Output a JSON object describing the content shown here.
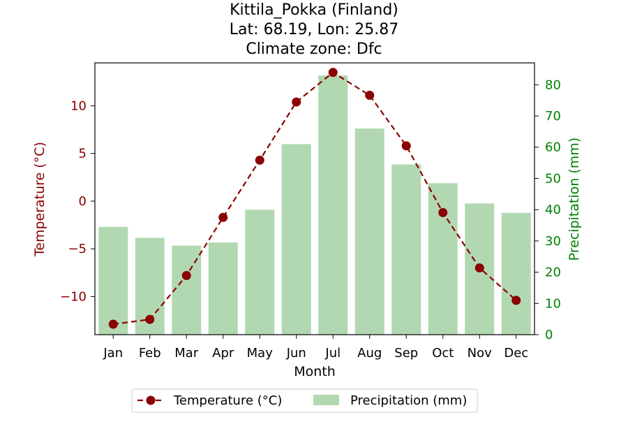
{
  "chart_data": {
    "type": "bar+line",
    "title_lines": [
      "Kittila_Pokka (Finland)",
      "Lat: 68.19, Lon: 25.87",
      "Climate zone: Dfc"
    ],
    "xlabel": "Month",
    "ylabel_left": "Temperature (°C)",
    "ylabel_right": "Precipitation (mm)",
    "categories": [
      "Jan",
      "Feb",
      "Mar",
      "Apr",
      "May",
      "Jun",
      "Jul",
      "Aug",
      "Sep",
      "Oct",
      "Nov",
      "Dec"
    ],
    "left_ticks": [
      -10,
      -5,
      0,
      5,
      10
    ],
    "left_tick_labels": [
      "−10",
      "−5",
      "0",
      "5",
      "10"
    ],
    "ylim_left": [
      -14.0,
      14.5
    ],
    "right_ticks": [
      0,
      10,
      20,
      30,
      40,
      50,
      60,
      70,
      80
    ],
    "right_tick_labels": [
      "0",
      "10",
      "20",
      "30",
      "40",
      "50",
      "60",
      "70",
      "80"
    ],
    "ylim_right": [
      0,
      87
    ],
    "series": [
      {
        "name": "Temperature (°C)",
        "type": "line",
        "axis": "left",
        "color": "#8b0000",
        "values": [
          -12.9,
          -12.4,
          -7.8,
          -1.7,
          4.3,
          10.4,
          13.5,
          11.1,
          5.8,
          -1.2,
          -7.0,
          -10.4
        ]
      },
      {
        "name": "Precipitation (mm)",
        "type": "bar",
        "axis": "right",
        "color": "#b2d8b2",
        "values": [
          34.5,
          31.0,
          28.5,
          29.5,
          40.0,
          61.0,
          83.0,
          66.0,
          54.5,
          48.5,
          42.0,
          39.0
        ]
      }
    ],
    "legend": {
      "position": "bottom-center",
      "entries": [
        "Temperature (°C)",
        "Precipitation (mm)"
      ]
    },
    "colors": {
      "left_axis": "#8b0000",
      "right_axis": "#008000",
      "text": "#000000"
    }
  }
}
